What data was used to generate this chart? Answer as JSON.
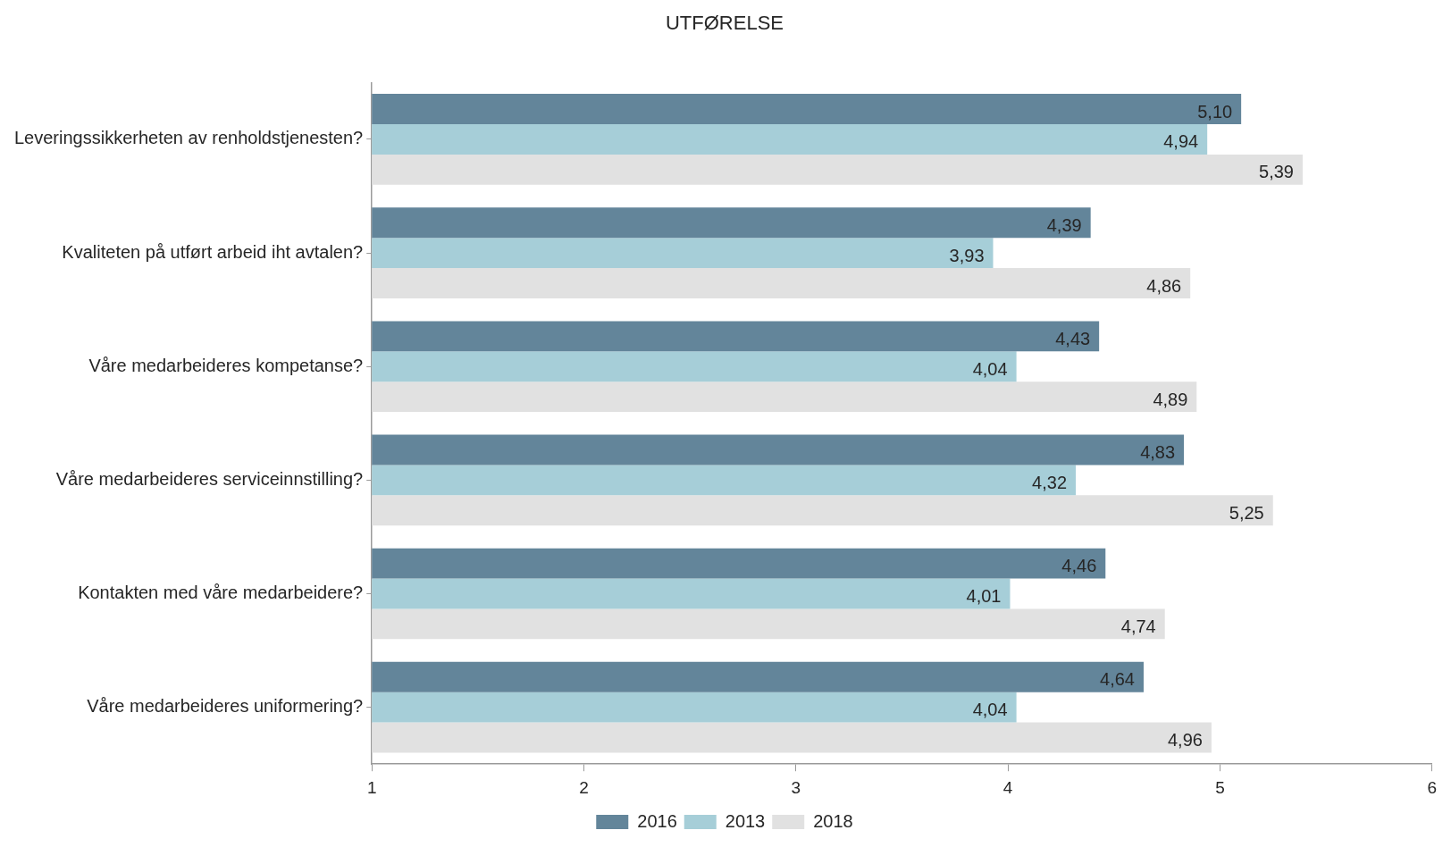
{
  "chart_data": {
    "type": "bar",
    "orientation": "horizontal",
    "title": "UTFØRELSE",
    "categories": [
      "Leveringssikkerheten av renholdstjenesten?",
      "Kvaliteten på utført arbeid iht avtalen?",
      "Våre medarbeideres kompetanse?",
      "Våre medarbeideres serviceinnstilling?",
      "Kontakten med våre medarbeidere?",
      "Våre medarbeideres uniformering?"
    ],
    "series": [
      {
        "name": "2016",
        "color": "#63859a",
        "values": [
          5.1,
          4.39,
          4.43,
          4.83,
          4.46,
          4.64
        ],
        "value_labels": [
          "5,10",
          "4,39",
          "4,43",
          "4,83",
          "4,46",
          "4,64"
        ]
      },
      {
        "name": "2013",
        "color": "#a6ced8",
        "values": [
          4.94,
          3.93,
          4.04,
          4.32,
          4.01,
          4.04
        ],
        "value_labels": [
          "4,94",
          "3,93",
          "4,04",
          "4,32",
          "4,01",
          "4,04"
        ]
      },
      {
        "name": "2018",
        "color": "#e1e1e1",
        "values": [
          5.39,
          4.86,
          4.89,
          5.25,
          4.74,
          4.96
        ],
        "value_labels": [
          "5,39",
          "4,86",
          "4,89",
          "5,25",
          "4,74",
          "4,96"
        ]
      }
    ],
    "xlim": [
      1,
      6
    ],
    "xticks": [
      1,
      2,
      3,
      4,
      5,
      6
    ],
    "legend": "bottom"
  }
}
